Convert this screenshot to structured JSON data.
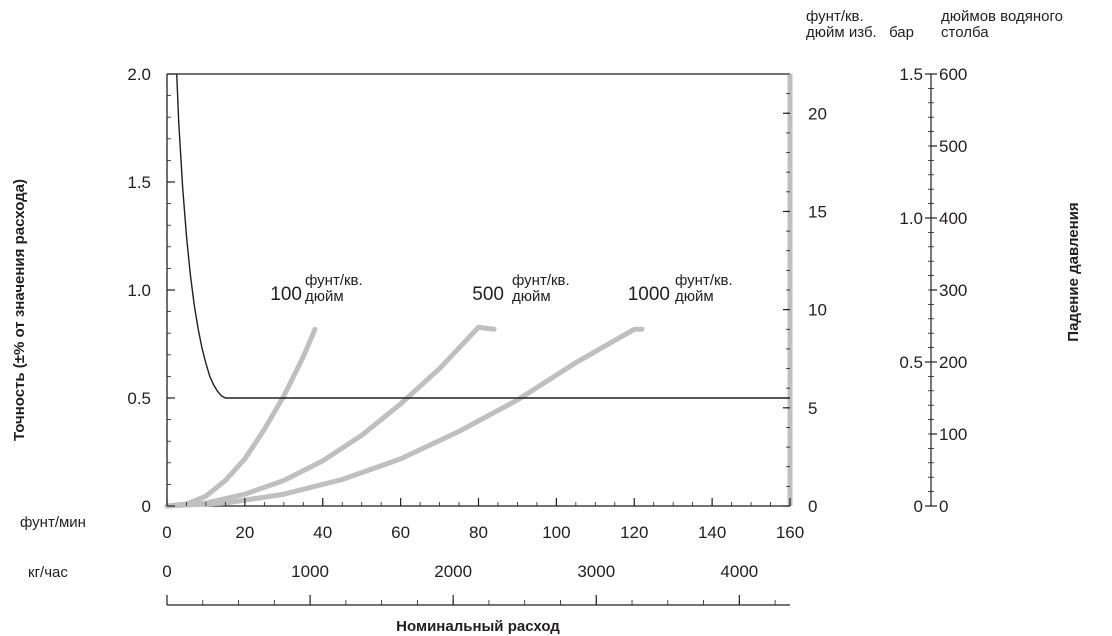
{
  "chart_data": {
    "type": "line",
    "x": {
      "unit_primary": "фунт/мин",
      "ticks_primary": [
        "0",
        "20",
        "40",
        "60",
        "80",
        "100",
        "120",
        "140",
        "160"
      ],
      "range_primary": [
        0,
        160
      ],
      "unit_secondary": "кг/час",
      "ticks_secondary": [
        "0",
        "1000",
        "2000",
        "3000",
        "4000"
      ],
      "range_secondary": [
        0,
        4400
      ],
      "title": "Номинальный расход"
    },
    "y_left": {
      "title": "Точность (±% от значения расхода)",
      "ticks": [
        "0",
        "0.5",
        "1.0",
        "1.5",
        "2.0"
      ],
      "range": [
        0,
        2.0
      ]
    },
    "y_right_psi": {
      "unit": "фунт/кв. дюйм изб.",
      "ticks": [
        "0",
        "5",
        "10",
        "15",
        "20"
      ],
      "range": [
        0,
        22
      ]
    },
    "y_right_bar": {
      "unit": "бар",
      "ticks": [
        "0",
        "0.5",
        "1.0",
        "1.5"
      ],
      "range": [
        0,
        1.5
      ]
    },
    "y_right_inwc": {
      "unit": "дюймов водяного столба",
      "ticks": [
        "0",
        "100",
        "200",
        "300",
        "400",
        "500",
        "600"
      ],
      "range": [
        0,
        600
      ]
    },
    "pressure_drop_title": "Падение давления",
    "accuracy_series": {
      "x": [
        2.5,
        3,
        4,
        5,
        6,
        7,
        8,
        9,
        10,
        11,
        12,
        13,
        14,
        15,
        160
      ],
      "y": [
        2.0,
        1.78,
        1.48,
        1.25,
        1.07,
        0.93,
        0.82,
        0.73,
        0.66,
        0.6,
        0.56,
        0.53,
        0.51,
        0.5,
        0.5
      ]
    },
    "pressure_series": [
      {
        "number": "100",
        "unit": "фунт/кв. дюйм",
        "x": [
          0,
          5,
          10,
          15,
          20,
          25,
          30,
          35,
          38
        ],
        "y": [
          0,
          0.1,
          0.5,
          1.3,
          2.4,
          3.9,
          5.6,
          7.6,
          9.0
        ]
      },
      {
        "number": "500",
        "unit": "фунт/кв. дюйм",
        "x": [
          0,
          10,
          20,
          30,
          40,
          50,
          60,
          70,
          80,
          84
        ],
        "y": [
          0,
          0.15,
          0.6,
          1.3,
          2.3,
          3.6,
          5.2,
          7.0,
          9.1,
          9.0
        ]
      },
      {
        "number": "1000",
        "unit": "фунт/кв. дюйм",
        "x": [
          0,
          15,
          30,
          45,
          60,
          75,
          90,
          105,
          120,
          122
        ],
        "y": [
          0,
          0.15,
          0.6,
          1.35,
          2.4,
          3.8,
          5.4,
          7.3,
          9.0,
          9.0
        ]
      }
    ],
    "grid": false,
    "colors": {
      "accuracy_line": "#231f20",
      "pressure_curves": "#c0bfbf",
      "axis": "#231f20"
    }
  }
}
